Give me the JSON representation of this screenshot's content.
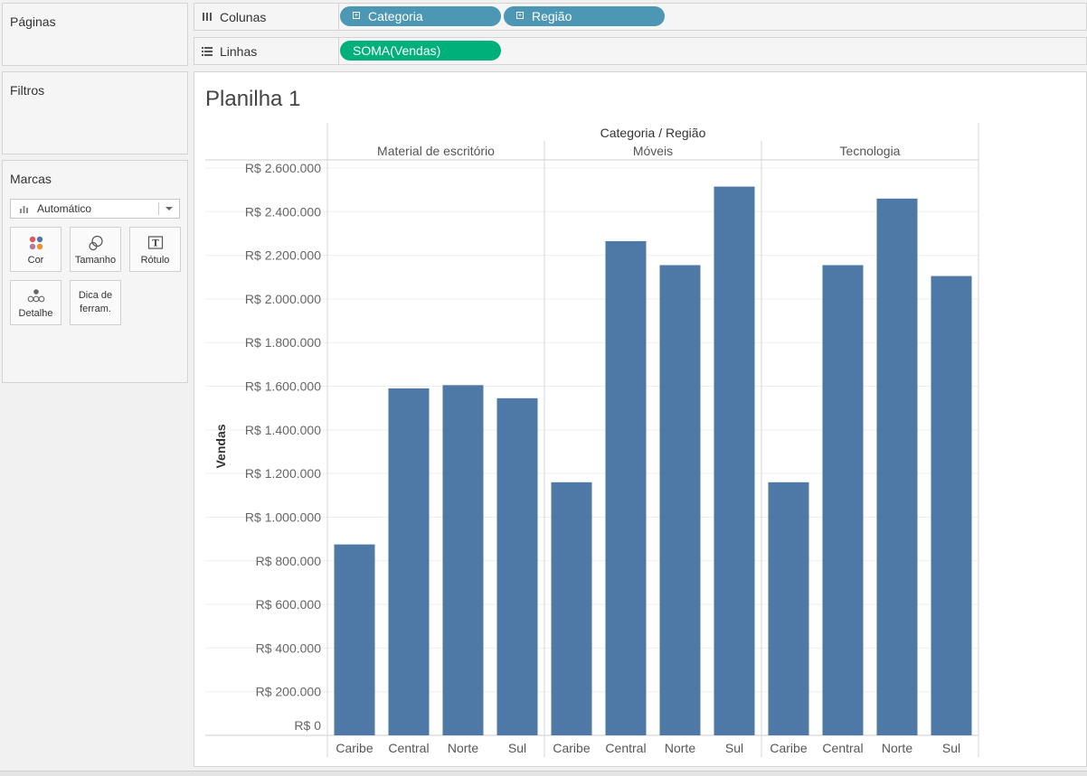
{
  "panels": {
    "paginas": "Páginas",
    "filtros": "Filtros",
    "marcas": "Marcas",
    "mark_type": "Automático",
    "mark_cards": {
      "cor": "Cor",
      "tamanho": "Tamanho",
      "rotulo": "Rótulo",
      "detalhe": "Detalhe",
      "dica_line1": "Dica de",
      "dica_line2": "ferram."
    }
  },
  "shelves": {
    "columns_label": "Colunas",
    "rows_label": "Linhas",
    "column_pills": [
      "Categoria",
      "Região"
    ],
    "row_pill": "SOMA(Vendas)"
  },
  "colors": {
    "bar": "#4e79a7",
    "column_pill": "#4b97b4",
    "row_pill": "#00b07a"
  },
  "sheet": {
    "title": "Planilha 1"
  },
  "chart_data": {
    "type": "bar",
    "header_title": "Categoria / Região",
    "ylabel": "Vendas",
    "ylim": [
      0,
      2600000
    ],
    "y_ticks": [
      {
        "value": 0,
        "label": "R$ 0"
      },
      {
        "value": 200000,
        "label": "R$ 200.000"
      },
      {
        "value": 400000,
        "label": "R$ 400.000"
      },
      {
        "value": 600000,
        "label": "R$ 600.000"
      },
      {
        "value": 800000,
        "label": "R$ 800.000"
      },
      {
        "value": 1000000,
        "label": "R$ 1.000.000"
      },
      {
        "value": 1200000,
        "label": "R$ 1.200.000"
      },
      {
        "value": 1400000,
        "label": "R$ 1.400.000"
      },
      {
        "value": 1600000,
        "label": "R$ 1.600.000"
      },
      {
        "value": 1800000,
        "label": "R$ 1.800.000"
      },
      {
        "value": 2000000,
        "label": "R$ 2.000.000"
      },
      {
        "value": 2200000,
        "label": "R$ 2.200.000"
      },
      {
        "value": 2400000,
        "label": "R$ 2.400.000"
      },
      {
        "value": 2600000,
        "label": "R$ 2.600.000"
      }
    ],
    "grid": true,
    "panes": [
      {
        "category": "Material de escritório",
        "regions": [
          "Caribe",
          "Central",
          "Norte",
          "Sul"
        ],
        "values": [
          875000,
          1590000,
          1605000,
          1545000
        ]
      },
      {
        "category": "Móveis",
        "regions": [
          "Caribe",
          "Central",
          "Norte",
          "Sul"
        ],
        "values": [
          1160000,
          2265000,
          2155000,
          2515000
        ]
      },
      {
        "category": "Tecnologia",
        "regions": [
          "Caribe",
          "Central",
          "Norte",
          "Sul"
        ],
        "values": [
          1160000,
          2155000,
          2460000,
          2105000
        ]
      }
    ]
  }
}
